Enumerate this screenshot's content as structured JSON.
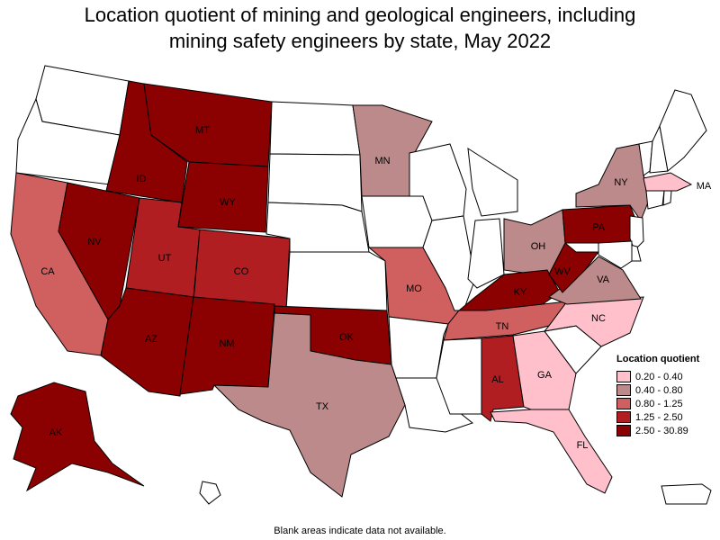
{
  "title": {
    "line1": "Location quotient of mining and geological engineers, including",
    "line2": "mining safety engineers by state, May 2022"
  },
  "colors": {
    "none": "#ffffff",
    "c1": "#ffc0cb",
    "c2": "#bc8a8a",
    "c3": "#d06060",
    "c4": "#b01e22",
    "c5": "#8b0000"
  },
  "legend": {
    "title": "Location quotient",
    "items": [
      {
        "label": "0.20 - 0.40",
        "color": "#ffc0cb"
      },
      {
        "label": "0.40 - 0.80",
        "color": "#bc8a8a"
      },
      {
        "label": "0.80 - 1.25",
        "color": "#d06060"
      },
      {
        "label": "1.25 - 2.50",
        "color": "#b01e22"
      },
      {
        "label": "2.50 - 30.89",
        "color": "#8b0000"
      }
    ]
  },
  "states": {
    "WA": {
      "class": "none"
    },
    "OR": {
      "class": "none"
    },
    "CA": {
      "class": "c3",
      "label": "CA"
    },
    "NV": {
      "class": "c5",
      "label": "NV"
    },
    "ID": {
      "class": "c5",
      "label": "ID"
    },
    "MT": {
      "class": "c5",
      "label": "MT"
    },
    "WY": {
      "class": "c5",
      "label": "WY"
    },
    "UT": {
      "class": "c4",
      "label": "UT"
    },
    "CO": {
      "class": "c4",
      "label": "CO"
    },
    "AZ": {
      "class": "c5",
      "label": "AZ"
    },
    "NM": {
      "class": "c5",
      "label": "NM"
    },
    "ND": {
      "class": "none"
    },
    "SD": {
      "class": "none"
    },
    "NE": {
      "class": "none"
    },
    "KS": {
      "class": "none"
    },
    "OK": {
      "class": "c5",
      "label": "OK"
    },
    "TX": {
      "class": "c2",
      "label": "TX"
    },
    "MN": {
      "class": "c2",
      "label": "MN"
    },
    "IA": {
      "class": "none"
    },
    "MO": {
      "class": "c3",
      "label": "MO"
    },
    "AR": {
      "class": "none"
    },
    "LA": {
      "class": "none"
    },
    "WI": {
      "class": "none"
    },
    "IL": {
      "class": "none"
    },
    "MI": {
      "class": "none"
    },
    "IN": {
      "class": "none"
    },
    "OH": {
      "class": "c2",
      "label": "OH"
    },
    "KY": {
      "class": "c5",
      "label": "KY"
    },
    "TN": {
      "class": "c3",
      "label": "TN"
    },
    "MS": {
      "class": "none"
    },
    "AL": {
      "class": "c4",
      "label": "AL"
    },
    "GA": {
      "class": "c1",
      "label": "GA"
    },
    "FL": {
      "class": "c1",
      "label": "FL"
    },
    "SC": {
      "class": "none"
    },
    "NC": {
      "class": "c1",
      "label": "NC"
    },
    "VA": {
      "class": "c2",
      "label": "VA"
    },
    "WV": {
      "class": "c5",
      "label": "WV"
    },
    "PA": {
      "class": "c5",
      "label": "PA"
    },
    "NY": {
      "class": "c2",
      "label": "NY"
    },
    "VT": {
      "class": "none"
    },
    "NH": {
      "class": "none"
    },
    "ME": {
      "class": "none"
    },
    "MA": {
      "class": "c1",
      "label": "MA"
    },
    "CT": {
      "class": "none"
    },
    "RI": {
      "class": "none"
    },
    "NJ": {
      "class": "none"
    },
    "DE": {
      "class": "none"
    },
    "MD": {
      "class": "none"
    },
    "AK": {
      "class": "c5",
      "label": "AK"
    },
    "HI": {
      "class": "none"
    },
    "PR": {
      "class": "none"
    }
  },
  "footnote": "Blank areas indicate data not available."
}
